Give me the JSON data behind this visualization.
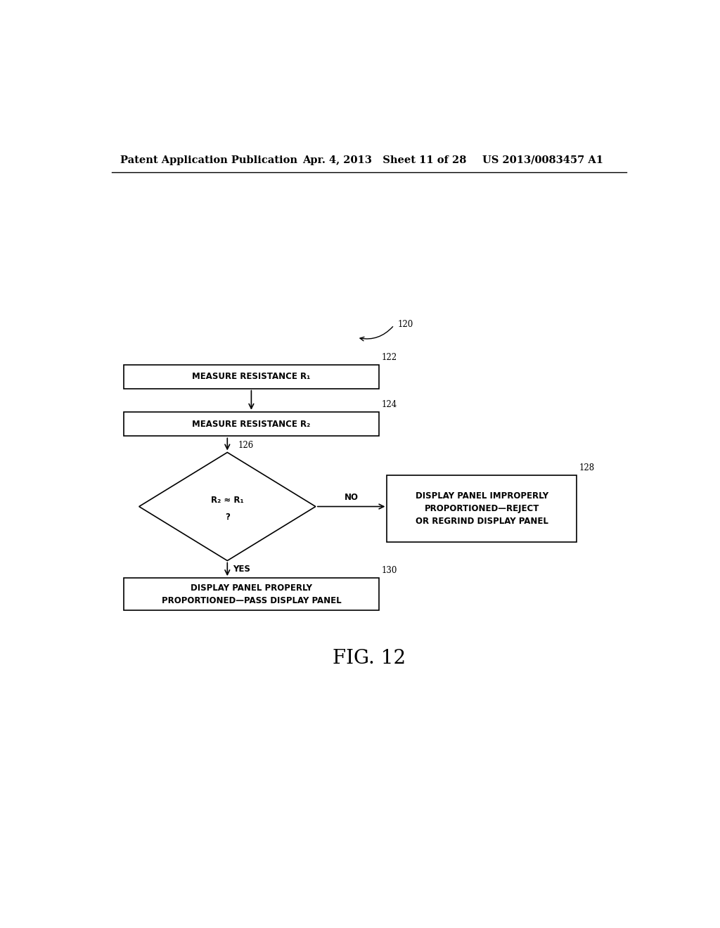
{
  "background_color": "#ffffff",
  "header_left": "Patent Application Publication",
  "header_center": "Apr. 4, 2013   Sheet 11 of 28",
  "header_right": "US 2013/0083457 A1",
  "label_120": "120",
  "label_122": "122",
  "label_124": "124",
  "label_126": "126",
  "label_128": "128",
  "label_130": "130",
  "box1_text": "MEASURE RESISTANCE R₁",
  "box2_text": "MEASURE RESISTANCE R₂",
  "diamond_line1": "R₂ ≈ R₁",
  "diamond_line2": "?",
  "box_no_text": "DISPLAY PANEL IMPROPERLY\nPROPORTIONED—REJECT\nOR REGRIND DISPLAY PANEL",
  "box_yes_text": "DISPLAY PANEL PROPERLY\nPROPORTIONED—PASS DISPLAY PANEL",
  "no_label": "NO",
  "yes_label": "YES",
  "fig_label": "FIG. 12",
  "line_color": "#000000",
  "text_color": "#000000",
  "font_size_header": 10.5,
  "font_size_box": 8.5,
  "font_size_label": 8.5,
  "font_size_fig": 20
}
